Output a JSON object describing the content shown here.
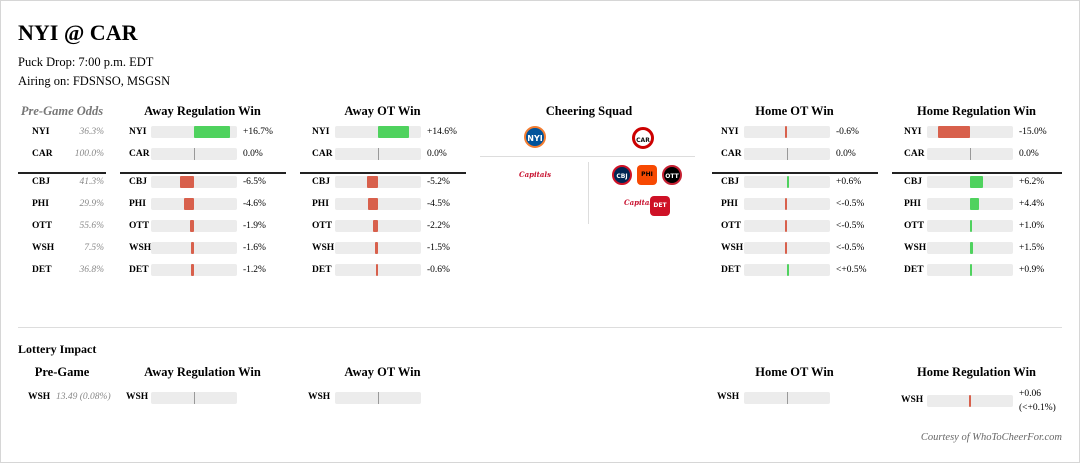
{
  "game": {
    "title": "NYI @ CAR",
    "puck_drop": "Puck Drop: 7:00 p.m. EDT",
    "airing": "Airing on: FDSNSO, MSGSN"
  },
  "headers": {
    "odds": "Pre-Game Odds",
    "away_reg": "Away Regulation Win",
    "away_ot": "Away OT Win",
    "cheering": "Cheering Squad",
    "home_ot": "Home OT Win",
    "home_reg": "Home Regulation Win"
  },
  "teams": [
    {
      "abbr": "NYI",
      "odds": "36.3%",
      "away_reg": 16.7,
      "away_reg_label": "+16.7%",
      "away_ot": 14.6,
      "away_ot_label": "+14.6%",
      "home_ot": -0.6,
      "home_ot_label": "-0.6%",
      "home_reg": -15.0,
      "home_reg_label": "-15.0%"
    },
    {
      "abbr": "CAR",
      "odds": "100.0%",
      "away_reg": 0,
      "away_reg_label": "0.0%",
      "away_ot": 0,
      "away_ot_label": "0.0%",
      "home_ot": 0,
      "home_ot_label": "0.0%",
      "home_reg": 0,
      "home_reg_label": "0.0%"
    },
    {
      "abbr": "CBJ",
      "odds": "41.3%",
      "away_reg": -6.5,
      "away_reg_label": "-6.5%",
      "away_ot": -5.2,
      "away_ot_label": "-5.2%",
      "home_ot": 0.6,
      "home_ot_label": "+0.6%",
      "home_reg": 6.2,
      "home_reg_label": "+6.2%"
    },
    {
      "abbr": "PHI",
      "odds": "29.9%",
      "away_reg": -4.6,
      "away_reg_label": "-4.6%",
      "away_ot": -4.5,
      "away_ot_label": "-4.5%",
      "home_ot": -0.2,
      "home_ot_label": "<-0.5%",
      "home_reg": 4.4,
      "home_reg_label": "+4.4%"
    },
    {
      "abbr": "OTT",
      "odds": "55.6%",
      "away_reg": -1.9,
      "away_reg_label": "-1.9%",
      "away_ot": -2.2,
      "away_ot_label": "-2.2%",
      "home_ot": -0.2,
      "home_ot_label": "<-0.5%",
      "home_reg": 1.0,
      "home_reg_label": "+1.0%"
    },
    {
      "abbr": "WSH",
      "odds": "7.5%",
      "away_reg": -1.6,
      "away_reg_label": "-1.6%",
      "away_ot": -1.5,
      "away_ot_label": "-1.5%",
      "home_ot": -0.2,
      "home_ot_label": "<-0.5%",
      "home_reg": 1.5,
      "home_reg_label": "+1.5%"
    },
    {
      "abbr": "DET",
      "odds": "36.8%",
      "away_reg": -1.2,
      "away_reg_label": "-1.2%",
      "away_ot": -0.6,
      "away_ot_label": "-0.6%",
      "home_ot": 0.1,
      "home_ot_label": "<+0.5%",
      "home_reg": 0.9,
      "home_reg_label": "+0.9%"
    }
  ],
  "cheering_squad": {
    "away": [
      "NYI"
    ],
    "home": [
      "CAR"
    ],
    "away_others": [
      "WSH"
    ],
    "home_others": [
      "CBJ",
      "PHI",
      "OTT",
      "WSH",
      "DET"
    ]
  },
  "lottery": {
    "title": "Lottery Impact",
    "pregame_header": "Pre-Game",
    "team": "WSH",
    "pregame_value": "13.49 (0.08%)",
    "home_reg_value": "+0.06",
    "home_reg_sub": "(<+0.1%)"
  },
  "courtesy": "Courtesy of WhoToCheerFor.com",
  "colors": {
    "positive": "#4fd25e",
    "negative": "#d8604c",
    "track": "#ececec"
  }
}
